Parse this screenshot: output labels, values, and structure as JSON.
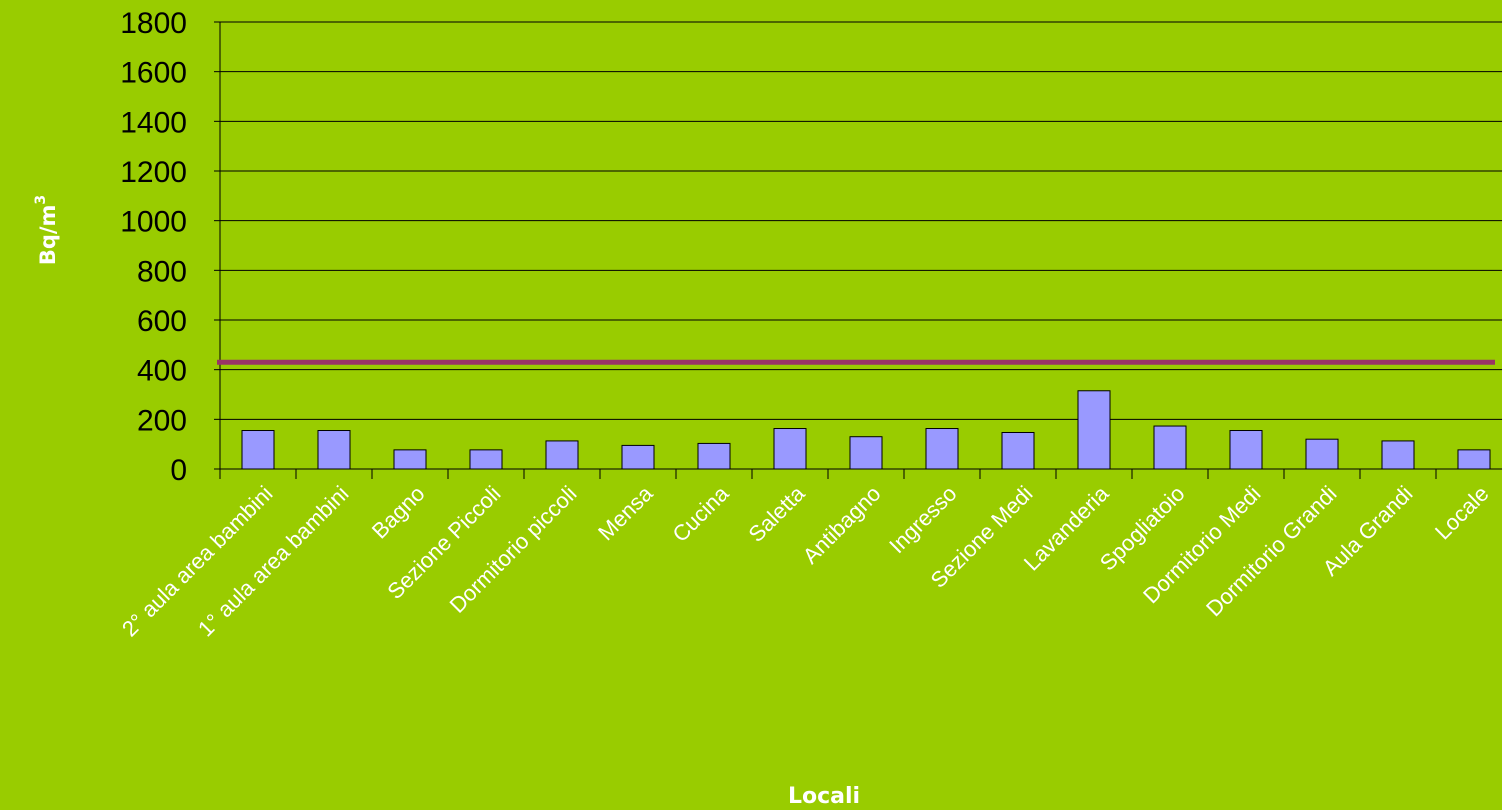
{
  "chart_data": {
    "type": "bar",
    "title": "",
    "xlabel": "Locali",
    "ylabel": "Bq/m",
    "ylabel_superscript": "3",
    "categories": [
      "2° aula area bambini",
      "1° aula area bambini",
      "Bagno",
      "Sezione Piccoli",
      "Dormitorio piccoli",
      "Mensa",
      "Cucina",
      "Saletta",
      "Antibagno",
      "Ingresso",
      "Sezione Medi",
      "Lavanderia",
      "Spogliatoio",
      "Dormitorio Medi",
      "Dormitorio Grandi",
      "Aula Grandi",
      "Locale"
    ],
    "values": [
      155,
      155,
      77,
      77,
      113,
      95,
      103,
      163,
      130,
      163,
      147,
      315,
      173,
      155,
      120,
      113,
      77
    ],
    "reference_line": 430,
    "ylim": [
      0,
      1800
    ],
    "yticks": [
      0,
      200,
      400,
      600,
      800,
      1000,
      1200,
      1400,
      1600,
      1800
    ],
    "grid": true,
    "legend": "none",
    "colors": {
      "background": "#99CC00",
      "bar_fill": "#9999FF",
      "bar_stroke": "#000000",
      "reference_line": "#993366",
      "tick_label": "#000000",
      "category_label": "#FFFFFF",
      "axis_title": "#FFFFFF"
    }
  }
}
